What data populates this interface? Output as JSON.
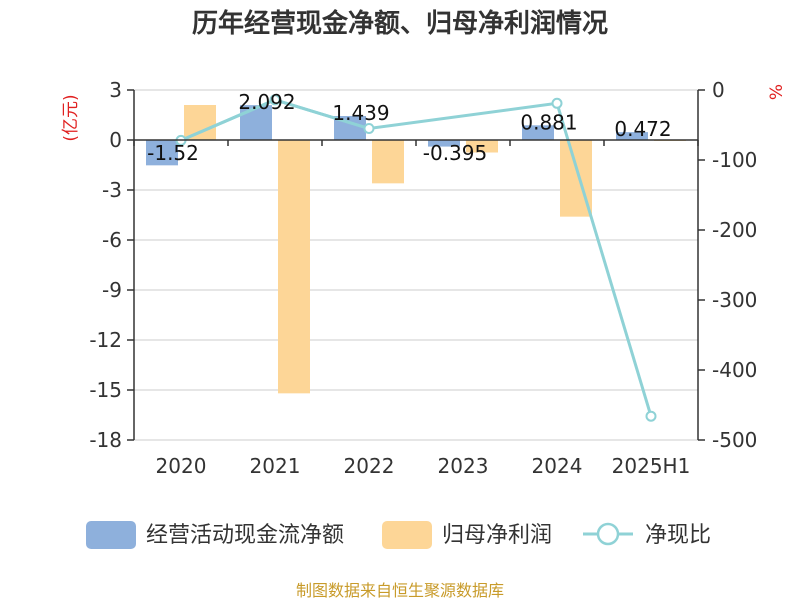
{
  "title": "历年经营现金净额、归母净利润情况",
  "source": "制图数据来自恒生聚源数据库",
  "chart_data": {
    "type": "bar",
    "title": "历年经营现金净额、归母净利润情况",
    "categories": [
      "2020",
      "2021",
      "2022",
      "2023",
      "2024",
      "2025H1"
    ],
    "left_axis": {
      "unit": "(亿元)",
      "ylim": [
        -18,
        3
      ],
      "ticks": [
        3,
        0,
        -3,
        -6,
        -9,
        -12,
        -15,
        -18
      ]
    },
    "right_axis": {
      "unit": "%",
      "ylim": [
        -500,
        0
      ],
      "ticks": [
        0,
        -100,
        -200,
        -300,
        -400,
        -500
      ]
    },
    "grid": true,
    "legend_position": "bottom",
    "series": [
      {
        "name": "经营活动现金流净额",
        "type": "bar",
        "axis": "left",
        "color": "#8eb0dc",
        "values": [
          -1.52,
          2.092,
          1.439,
          -0.395,
          0.881,
          0.472
        ],
        "labels": [
          "-1.52",
          "2.092",
          "1.439",
          "-0.395",
          "0.881",
          "0.472"
        ]
      },
      {
        "name": "归母净利润",
        "type": "bar",
        "axis": "left",
        "color": "#fdd697",
        "values": [
          2.1,
          -15.2,
          -2.6,
          -0.75,
          -4.6,
          -0.05
        ]
      },
      {
        "name": "净现比",
        "type": "line",
        "axis": "right",
        "color": "#8fd2d6",
        "values": [
          -72,
          -14,
          -55,
          null,
          -19,
          -466
        ]
      }
    ]
  }
}
